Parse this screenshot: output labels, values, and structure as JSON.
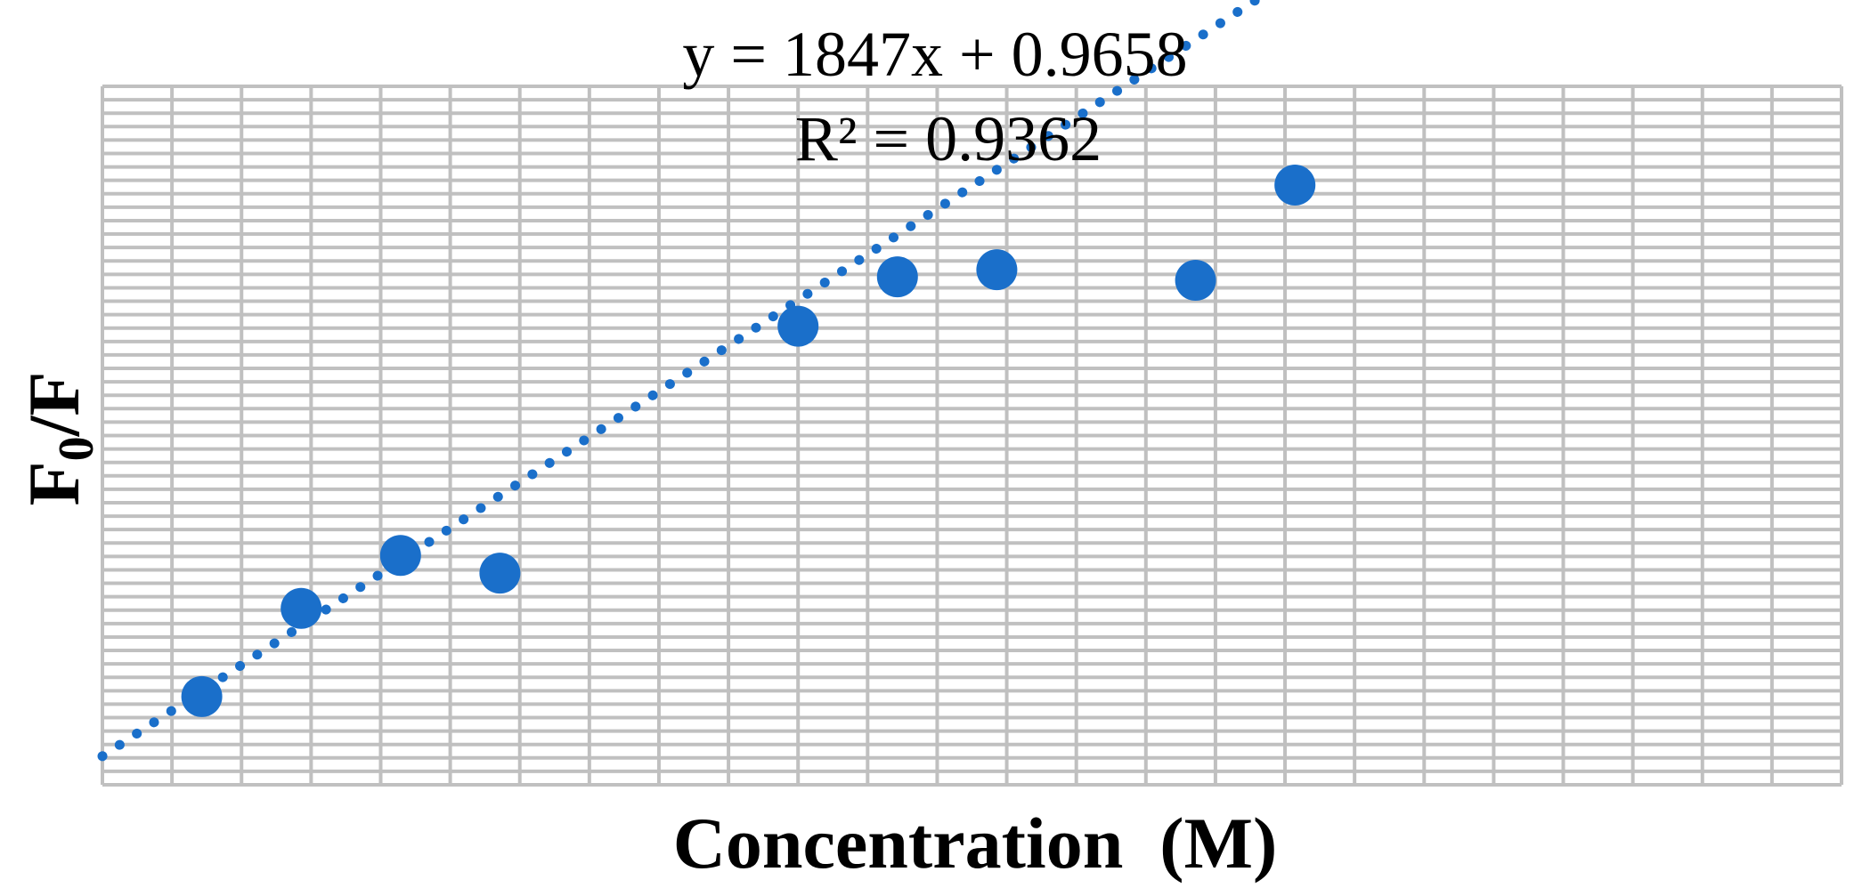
{
  "chart_data": {
    "type": "scatter",
    "xlabel": "Concentration  (M)",
    "ylabel_main": "F",
    "ylabel_sub": "0",
    "ylabel_tail": "/F",
    "x_tick_labels": [],
    "y_tick_labels": [],
    "grid": true,
    "legend": "none",
    "annotations": {
      "equation": "y = 1847x + 0.9658",
      "r_squared": "R² = 0.9362"
    },
    "series": [
      {
        "marker_color": "#1a6fca",
        "points": [
          {
            "x": 0.0,
            "y": 0.95
          },
          {
            "x": 0.0001,
            "y": 1.2
          },
          {
            "x": 0.0002,
            "y": 1.35
          },
          {
            "x": 0.0003,
            "y": 1.3
          },
          {
            "x": 0.0006,
            "y": 2.0
          },
          {
            "x": 0.0007,
            "y": 2.14
          },
          {
            "x": 0.0008,
            "y": 2.16
          },
          {
            "x": 0.001,
            "y": 2.13
          },
          {
            "x": 0.0011,
            "y": 2.4
          }
        ]
      }
    ],
    "trendline": {
      "type": "linear",
      "style": "dotted",
      "color": "#1a6fca",
      "slope": 1847,
      "intercept": 0.9658,
      "x_range": [
        -0.0001,
        0.0014
      ]
    },
    "xlim": [
      -0.0001,
      0.00165
    ],
    "ylim": [
      0.7,
      2.68
    ],
    "gridline_color": "#c0c0c0"
  }
}
